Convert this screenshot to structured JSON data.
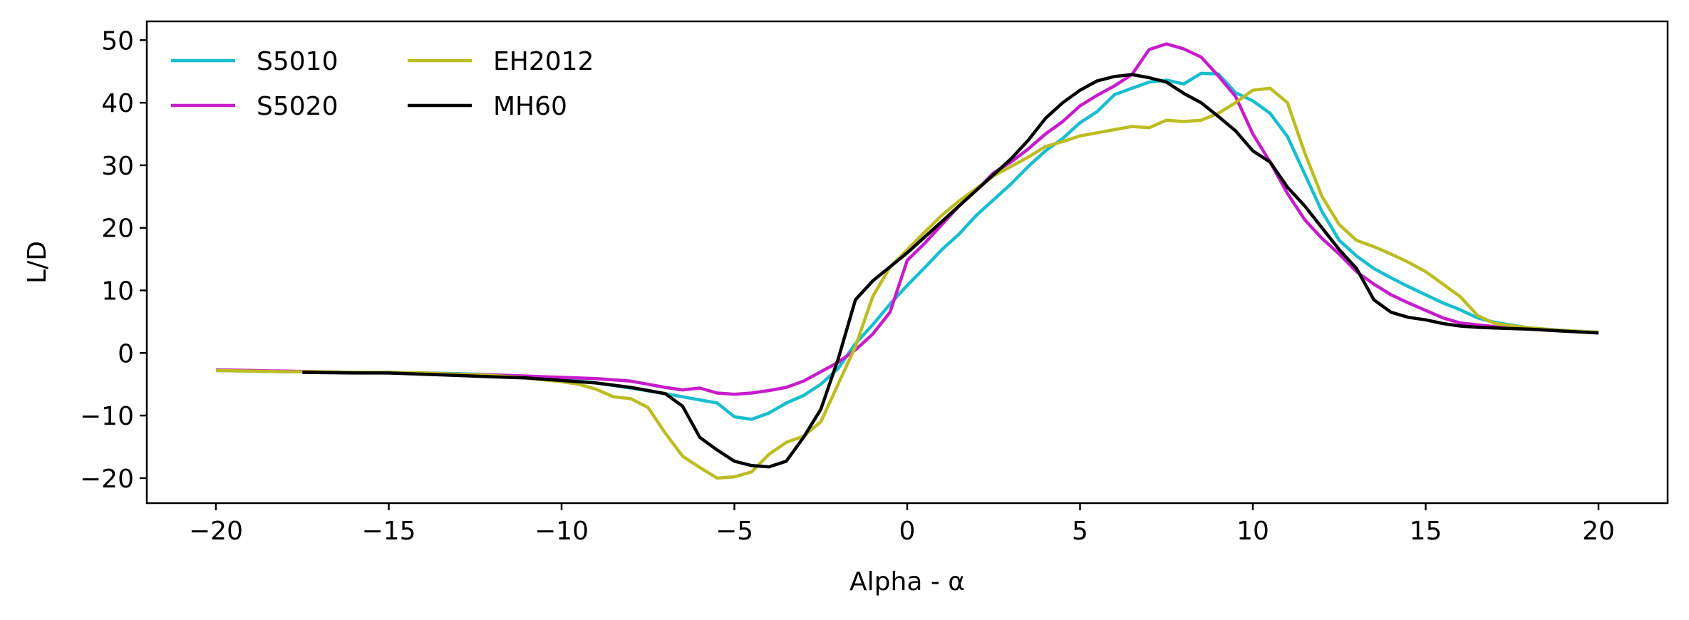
{
  "chart_data": {
    "type": "line",
    "title": "",
    "xlabel": "Alpha - α",
    "ylabel": "L/D",
    "xlim": [
      -22,
      22
    ],
    "ylim": [
      -24,
      53
    ],
    "xticks": [
      -20,
      -15,
      -10,
      -5,
      0,
      5,
      10,
      15,
      20
    ],
    "xtick_labels": [
      "−20",
      "−15",
      "−10",
      "−5",
      "0",
      "5",
      "10",
      "15",
      "20"
    ],
    "yticks": [
      -20,
      -10,
      0,
      10,
      20,
      30,
      40,
      50
    ],
    "ytick_labels": [
      "−20",
      "−10",
      "0",
      "10",
      "20",
      "30",
      "40",
      "50"
    ],
    "grid": false,
    "legend_position": "top-left",
    "series": [
      {
        "name": "S5010",
        "color": "#17becf",
        "x": [
          -20,
          -19,
          -18,
          -17,
          -16,
          -15,
          -14,
          -13,
          -12,
          -11,
          -10,
          -9,
          -8,
          -7,
          -6.5,
          -6,
          -5.5,
          -5,
          -4.5,
          -4,
          -3.5,
          -3,
          -2.5,
          -2,
          -1.5,
          -1,
          -0.5,
          0,
          0.5,
          1,
          1.5,
          2,
          2.5,
          3,
          3.5,
          4,
          4.5,
          5,
          5.5,
          6,
          6.5,
          7,
          7.5,
          8,
          8.5,
          9,
          9.5,
          10,
          10.5,
          11,
          11.5,
          12,
          12.5,
          13,
          13.5,
          14,
          14.5,
          15,
          15.5,
          16,
          16.5,
          17,
          18,
          19,
          20
        ],
        "y": [
          -2.8,
          -2.9,
          -3.0,
          -3.0,
          -3.1,
          -3.1,
          -3.2,
          -3.3,
          -3.5,
          -3.8,
          -4.2,
          -4.8,
          -5.6,
          -6.5,
          -7.0,
          -7.5,
          -8.0,
          -10.2,
          -10.6,
          -9.6,
          -8.0,
          -6.8,
          -5.0,
          -2.5,
          1.5,
          4.5,
          7.8,
          10.8,
          13.6,
          16.5,
          19.0,
          22.0,
          24.5,
          27.0,
          29.8,
          32.3,
          34.3,
          36.8,
          38.6,
          41.3,
          42.3,
          43.3,
          43.6,
          43.0,
          44.7,
          44.6,
          41.6,
          40.3,
          38.3,
          34.6,
          28.6,
          22.6,
          18.0,
          15.5,
          13.5,
          12.0,
          10.6,
          9.3,
          8.0,
          6.9,
          5.6,
          4.9,
          4.0,
          3.6,
          3.3
        ]
      },
      {
        "name": "S5020",
        "color": "#c71ccb",
        "x": [
          -20,
          -19,
          -18,
          -17,
          -16,
          -15,
          -14,
          -13,
          -12,
          -11,
          -10,
          -9,
          -8,
          -7.5,
          -7,
          -6.5,
          -6,
          -5.5,
          -5,
          -4.5,
          -4,
          -3.5,
          -3,
          -2.5,
          -2,
          -1.5,
          -1,
          -0.5,
          0,
          0.5,
          1,
          1.5,
          2,
          2.5,
          3,
          3.5,
          4,
          4.5,
          5,
          5.5,
          6,
          6.5,
          7,
          7.5,
          8,
          8.5,
          9,
          9.5,
          10,
          10.5,
          11,
          11.5,
          12,
          12.5,
          13,
          13.5,
          14,
          14.5,
          15,
          15.5,
          16,
          16.5,
          17,
          18,
          19,
          20
        ],
        "y": [
          -2.7,
          -2.8,
          -2.9,
          -3.0,
          -3.1,
          -3.2,
          -3.2,
          -3.4,
          -3.5,
          -3.7,
          -3.9,
          -4.1,
          -4.5,
          -5.0,
          -5.5,
          -5.9,
          -5.6,
          -6.4,
          -6.6,
          -6.4,
          -6.0,
          -5.5,
          -4.5,
          -3.0,
          -1.5,
          0.5,
          3.0,
          6.5,
          14.8,
          17.5,
          20.5,
          23.5,
          26.0,
          28.8,
          30.5,
          32.6,
          35.0,
          37.0,
          39.5,
          41.2,
          42.7,
          44.5,
          48.5,
          49.4,
          48.6,
          47.3,
          44.3,
          41.0,
          35.0,
          30.5,
          25.5,
          21.3,
          18.3,
          15.8,
          13.0,
          11.0,
          9.3,
          8.0,
          6.8,
          5.6,
          4.8,
          4.5,
          4.2,
          3.8,
          3.5,
          3.3
        ]
      },
      {
        "name": "EH2012",
        "color": "#bcbd22",
        "x": [
          -20,
          -19,
          -18,
          -17,
          -16,
          -15,
          -14,
          -13,
          -12,
          -11,
          -10,
          -9.5,
          -9,
          -8.5,
          -8,
          -7.5,
          -7,
          -6.5,
          -6,
          -5.5,
          -5,
          -4.5,
          -4,
          -3.5,
          -3,
          -2.5,
          -2,
          -1.5,
          -1,
          -0.5,
          0,
          0.5,
          1,
          1.5,
          2,
          2.5,
          3,
          3.5,
          4,
          4.5,
          5,
          5.5,
          6,
          6.5,
          7,
          7.5,
          8,
          8.5,
          9,
          9.5,
          10,
          10.5,
          11,
          11.5,
          12,
          12.5,
          13,
          13.5,
          14,
          14.5,
          15,
          15.5,
          16,
          16.5,
          17,
          18,
          19,
          20
        ],
        "y": [
          -2.8,
          -2.9,
          -3.0,
          -3.0,
          -3.1,
          -3.1,
          -3.2,
          -3.4,
          -3.6,
          -4.0,
          -4.6,
          -5.0,
          -5.8,
          -7.0,
          -7.3,
          -8.7,
          -12.8,
          -16.5,
          -18.3,
          -20.0,
          -19.8,
          -19.0,
          -16.2,
          -14.3,
          -13.3,
          -11.0,
          -5.0,
          1.0,
          9.0,
          13.7,
          16.5,
          19.3,
          22.0,
          24.3,
          26.3,
          28.3,
          29.8,
          31.3,
          33.0,
          33.8,
          34.7,
          35.2,
          35.7,
          36.2,
          36.0,
          37.2,
          37.0,
          37.2,
          38.3,
          40.0,
          42.0,
          42.3,
          40.0,
          32.0,
          25.0,
          20.5,
          18.0,
          17.0,
          15.8,
          14.5,
          13.0,
          11.0,
          9.0,
          6.0,
          4.7,
          4.0,
          3.6,
          3.3
        ]
      },
      {
        "name": "MH60",
        "color": "#000000",
        "x": [
          -17.5,
          -16,
          -15,
          -14,
          -13,
          -12,
          -11,
          -10,
          -9,
          -8,
          -7.5,
          -7,
          -6.5,
          -6,
          -5.5,
          -5,
          -4.5,
          -4,
          -3.5,
          -3,
          -2.5,
          -2,
          -1.5,
          -1,
          0,
          1,
          2,
          3,
          3.5,
          4,
          4.5,
          5,
          5.5,
          6,
          6.5,
          7,
          7.5,
          8,
          8.5,
          9,
          9.5,
          10,
          10.5,
          11,
          11.5,
          12,
          12.5,
          13,
          13.5,
          14,
          14.5,
          15,
          15.5,
          16,
          16.5,
          17,
          18,
          19,
          20
        ],
        "y": [
          -3.1,
          -3.2,
          -3.2,
          -3.4,
          -3.6,
          -3.8,
          -4.0,
          -4.4,
          -4.8,
          -5.5,
          -6.0,
          -6.5,
          -8.5,
          -13.5,
          -15.5,
          -17.3,
          -18.0,
          -18.2,
          -17.3,
          -13.5,
          -9.0,
          -1.0,
          8.5,
          11.5,
          16.0,
          21.0,
          26.0,
          31.0,
          34.0,
          37.5,
          40.0,
          42.0,
          43.5,
          44.2,
          44.5,
          44.0,
          43.3,
          41.5,
          40.0,
          37.8,
          35.5,
          32.3,
          30.5,
          26.5,
          23.5,
          20.0,
          16.5,
          13.5,
          8.5,
          6.5,
          5.7,
          5.3,
          4.7,
          4.3,
          4.1,
          4.0,
          3.8,
          3.5,
          3.2
        ]
      }
    ]
  }
}
